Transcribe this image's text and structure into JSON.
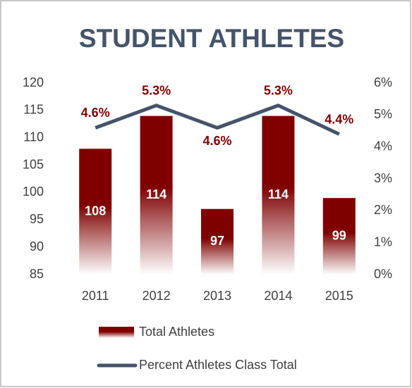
{
  "chart_data": {
    "type": "combo",
    "title": "STUDENT ATHLETES",
    "categories": [
      "2011",
      "2012",
      "2013",
      "2014",
      "2015"
    ],
    "series": [
      {
        "name": "Total Athletes",
        "type": "bar",
        "color": "#800000",
        "values": [
          108,
          114,
          97,
          114,
          99
        ]
      },
      {
        "name": "Percent Athletes Class Total",
        "type": "line",
        "axis": "y2",
        "color": "#44546a",
        "values": [
          4.6,
          5.3,
          4.6,
          5.3,
          4.4
        ],
        "value_labels": [
          "4.6%",
          "5.3%",
          "4.6%",
          "5.3%",
          "4.4%"
        ]
      }
    ],
    "ylim": [
      85,
      120
    ],
    "yticks": [
      85,
      90,
      95,
      100,
      105,
      110,
      115,
      120
    ],
    "y2lim": [
      0,
      6
    ],
    "y2ticks": [
      {
        "value": 0,
        "label": "0%"
      },
      {
        "value": 1,
        "label": "1%"
      },
      {
        "value": 2,
        "label": "2%"
      },
      {
        "value": 3,
        "label": "3%"
      },
      {
        "value": 4,
        "label": "4%"
      },
      {
        "value": 5,
        "label": "5%"
      },
      {
        "value": 6,
        "label": "6%"
      }
    ],
    "grid": false,
    "legend": "bottom"
  }
}
